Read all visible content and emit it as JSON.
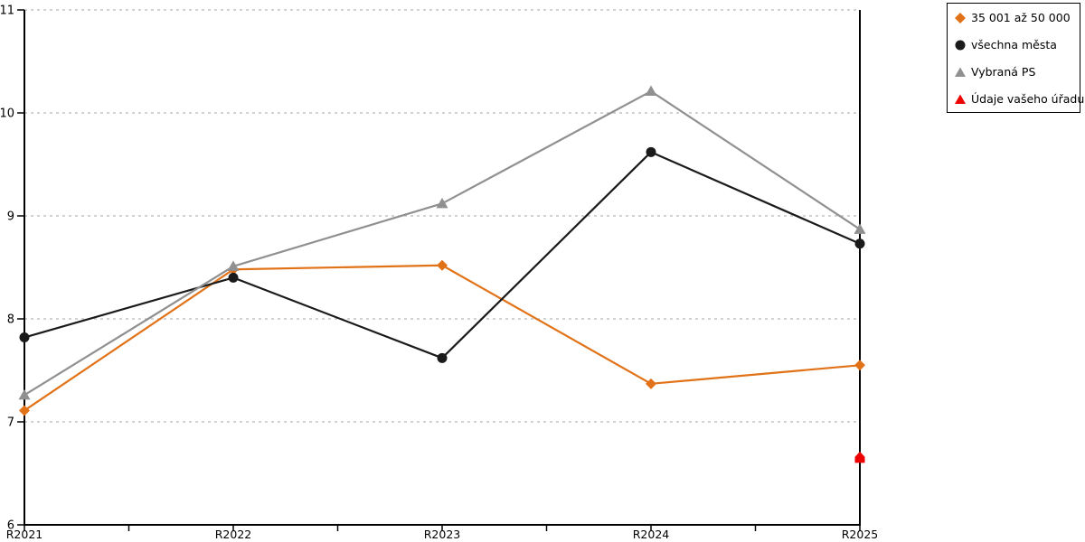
{
  "chart_data": {
    "type": "line",
    "categories": [
      "R2021",
      "R2022",
      "R2023",
      "R2024",
      "R2025"
    ],
    "series": [
      {
        "name": "35 001 až 50 000",
        "color": "#E17217",
        "marker": "diamond",
        "line": true,
        "values": [
          7.11,
          8.48,
          8.52,
          7.37,
          7.55
        ]
      },
      {
        "name": "všechna města",
        "color": "#1A1A1A",
        "marker": "circle",
        "line": true,
        "values": [
          7.82,
          8.4,
          7.62,
          9.62,
          8.73
        ]
      },
      {
        "name": "Vybraná PS",
        "color": "#909090",
        "marker": "triangle",
        "line": true,
        "values": [
          7.26,
          8.51,
          9.12,
          10.21,
          8.87
        ]
      },
      {
        "name": "Údaje vašeho úřadu",
        "color": "#EE0000",
        "marker": "house",
        "line": false,
        "values": [
          null,
          null,
          null,
          null,
          6.65
        ]
      }
    ],
    "title": "",
    "xlabel": "",
    "ylabel": "",
    "ylim": [
      6,
      11
    ],
    "y_ticks": [
      6,
      7,
      8,
      9,
      10,
      11
    ],
    "x_minor_ticks": true,
    "grid": "horizontal-dashed",
    "legend_position": "top-right"
  },
  "style": {
    "axis_color": "#000000",
    "grid_color": "#B8B8B8",
    "tick_label_color": "#000000",
    "background": "#ffffff"
  }
}
